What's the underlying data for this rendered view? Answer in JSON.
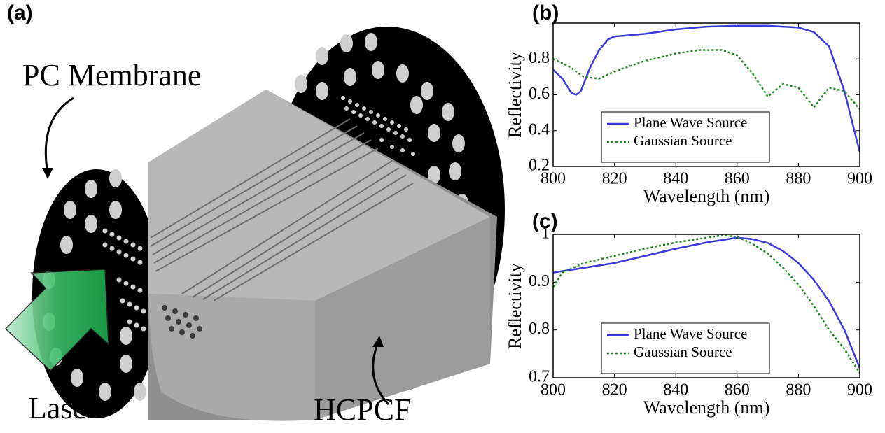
{
  "illustration": {
    "panel_label": "(a)",
    "labels": [
      "PC Membrane",
      "Laser",
      "HCPCF"
    ]
  },
  "chart_data": [
    {
      "type": "line",
      "panel_label": "(b)",
      "xlabel": "Wavelength (nm)",
      "ylabel": "Reflectivity",
      "xlim": [
        800,
        900
      ],
      "xticks": [
        800,
        820,
        840,
        860,
        880,
        900
      ],
      "ylim": [
        0.2,
        1
      ],
      "yticks": [
        0.2,
        0.4,
        0.6,
        0.8
      ],
      "legend": "lower center",
      "series": [
        {
          "name": "Plane Wave Source",
          "color": "#3a3ae0",
          "style": "solid",
          "x": [
            800,
            803,
            806,
            807.5,
            809,
            812,
            815,
            818,
            820,
            830,
            840,
            850,
            860,
            870,
            880,
            885,
            890,
            895,
            900
          ],
          "values": [
            0.74,
            0.69,
            0.61,
            0.6,
            0.62,
            0.75,
            0.85,
            0.91,
            0.925,
            0.94,
            0.965,
            0.98,
            0.985,
            0.985,
            0.975,
            0.95,
            0.87,
            0.62,
            0.28
          ]
        },
        {
          "name": "Gaussian Source",
          "color": "#1a8a1a",
          "style": "dotted",
          "x": [
            800,
            805,
            810,
            815,
            820,
            830,
            840,
            848,
            855,
            860,
            865,
            870,
            875,
            880,
            885,
            890,
            895,
            900
          ],
          "values": [
            0.8,
            0.76,
            0.7,
            0.69,
            0.73,
            0.79,
            0.83,
            0.85,
            0.85,
            0.82,
            0.72,
            0.59,
            0.66,
            0.64,
            0.53,
            0.64,
            0.62,
            0.52
          ]
        }
      ]
    },
    {
      "type": "line",
      "panel_label": "(c)",
      "xlabel": "Wavelength (nm)",
      "ylabel": "Reflectivity",
      "xlim": [
        800,
        900
      ],
      "xticks": [
        800,
        820,
        840,
        860,
        880,
        900
      ],
      "ylim": [
        0.7,
        1
      ],
      "yticks": [
        0.7,
        0.8,
        0.9,
        1
      ],
      "legend": "lower center",
      "series": [
        {
          "name": "Plane Wave Source",
          "color": "#3a3ae0",
          "style": "solid",
          "x": [
            800,
            810,
            820,
            830,
            840,
            850,
            860,
            865,
            870,
            875,
            880,
            885,
            890,
            895,
            900
          ],
          "values": [
            0.92,
            0.93,
            0.94,
            0.955,
            0.97,
            0.983,
            0.993,
            0.99,
            0.982,
            0.965,
            0.94,
            0.905,
            0.86,
            0.8,
            0.72
          ]
        },
        {
          "name": "Gaussian Source",
          "color": "#1a8a1a",
          "style": "dotted",
          "x": [
            800,
            803,
            810,
            820,
            830,
            840,
            850,
            855,
            860,
            865,
            870,
            875,
            880,
            885,
            890,
            895,
            900
          ],
          "values": [
            0.89,
            0.92,
            0.94,
            0.955,
            0.97,
            0.983,
            0.993,
            0.998,
            0.995,
            0.98,
            0.96,
            0.93,
            0.895,
            0.85,
            0.8,
            0.76,
            0.71
          ]
        }
      ]
    }
  ]
}
